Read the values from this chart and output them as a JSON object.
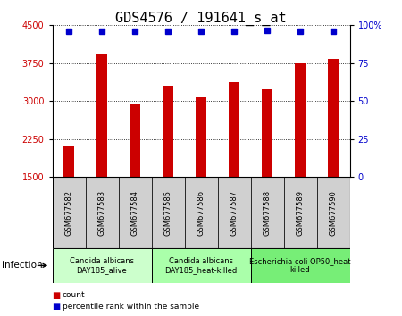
{
  "title": "GDS4576 / 191641_s_at",
  "samples": [
    "GSM677582",
    "GSM677583",
    "GSM677584",
    "GSM677585",
    "GSM677586",
    "GSM677587",
    "GSM677588",
    "GSM677589",
    "GSM677590"
  ],
  "counts": [
    2130,
    3930,
    2950,
    3300,
    3070,
    3370,
    3230,
    3750,
    3830
  ],
  "percentiles": [
    98,
    98,
    98,
    98,
    98,
    98,
    99,
    98,
    98
  ],
  "ylim_left": [
    1500,
    4500
  ],
  "ylim_right": [
    0,
    100
  ],
  "yticks_left": [
    1500,
    2250,
    3000,
    3750,
    4500
  ],
  "yticks_right": [
    0,
    25,
    50,
    75,
    100
  ],
  "bar_color": "#cc0000",
  "dot_color": "#0000cc",
  "bar_bottom": 1500,
  "groups": [
    {
      "label": "Candida albicans\nDAY185_alive",
      "start": 0,
      "end": 3,
      "color": "#ccffcc"
    },
    {
      "label": "Candida albicans\nDAY185_heat-killed",
      "start": 3,
      "end": 6,
      "color": "#aaffaa"
    },
    {
      "label": "Escherichia coli OP50_heat\nkilled",
      "start": 6,
      "end": 9,
      "color": "#77ee77"
    }
  ],
  "xlabel_infection": "infection",
  "legend_count": "count",
  "legend_pct": "percentile rank within the sample",
  "bg_sample_color": "#d0d0d0",
  "title_fontsize": 11,
  "tick_fontsize": 7,
  "group_label_fontsize": 6,
  "left_tick_color": "#cc0000",
  "right_tick_color": "#0000cc",
  "bar_width": 0.35
}
